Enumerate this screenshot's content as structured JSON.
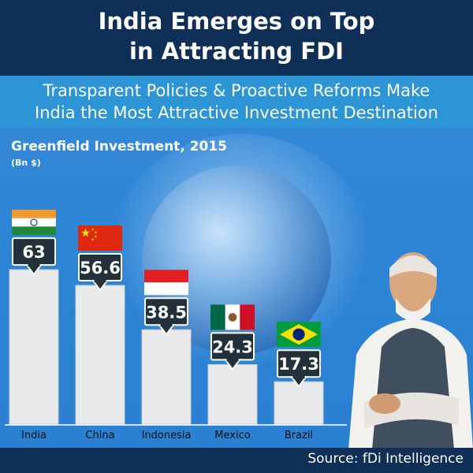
{
  "header": {
    "title_line1": "India Emerges on Top",
    "title_line2": "in Attracting FDI"
  },
  "subtitle": {
    "line1": "Transparent Policies & Proactive Reforms Make",
    "line2": "India the Most Attractive Investment Destination"
  },
  "source": "Source: fDi Intelligence",
  "colors": {
    "header_bg": "#0f2f57",
    "subtitle_bg": "#2d95d6",
    "bar_fill": "#e7e9ea",
    "value_box": "#22313b"
  },
  "chart_data": {
    "type": "bar",
    "title": "Greenfield Investment, 2015",
    "ylabel": "(Bn $)",
    "categories": [
      "India",
      "China",
      "Indonesia",
      "Mexico",
      "Brazil"
    ],
    "values": [
      63,
      56.6,
      38.5,
      24.3,
      17.3
    ],
    "value_labels": [
      "63",
      "56.6",
      "38.5",
      "24.3",
      "17.3"
    ],
    "flags": [
      "india-flag-icon",
      "china-flag-icon",
      "indonesia-flag-icon",
      "mexico-flag-icon",
      "brazil-flag-icon"
    ],
    "ylim": [
      0,
      70
    ],
    "grid": false,
    "legend": "none"
  }
}
